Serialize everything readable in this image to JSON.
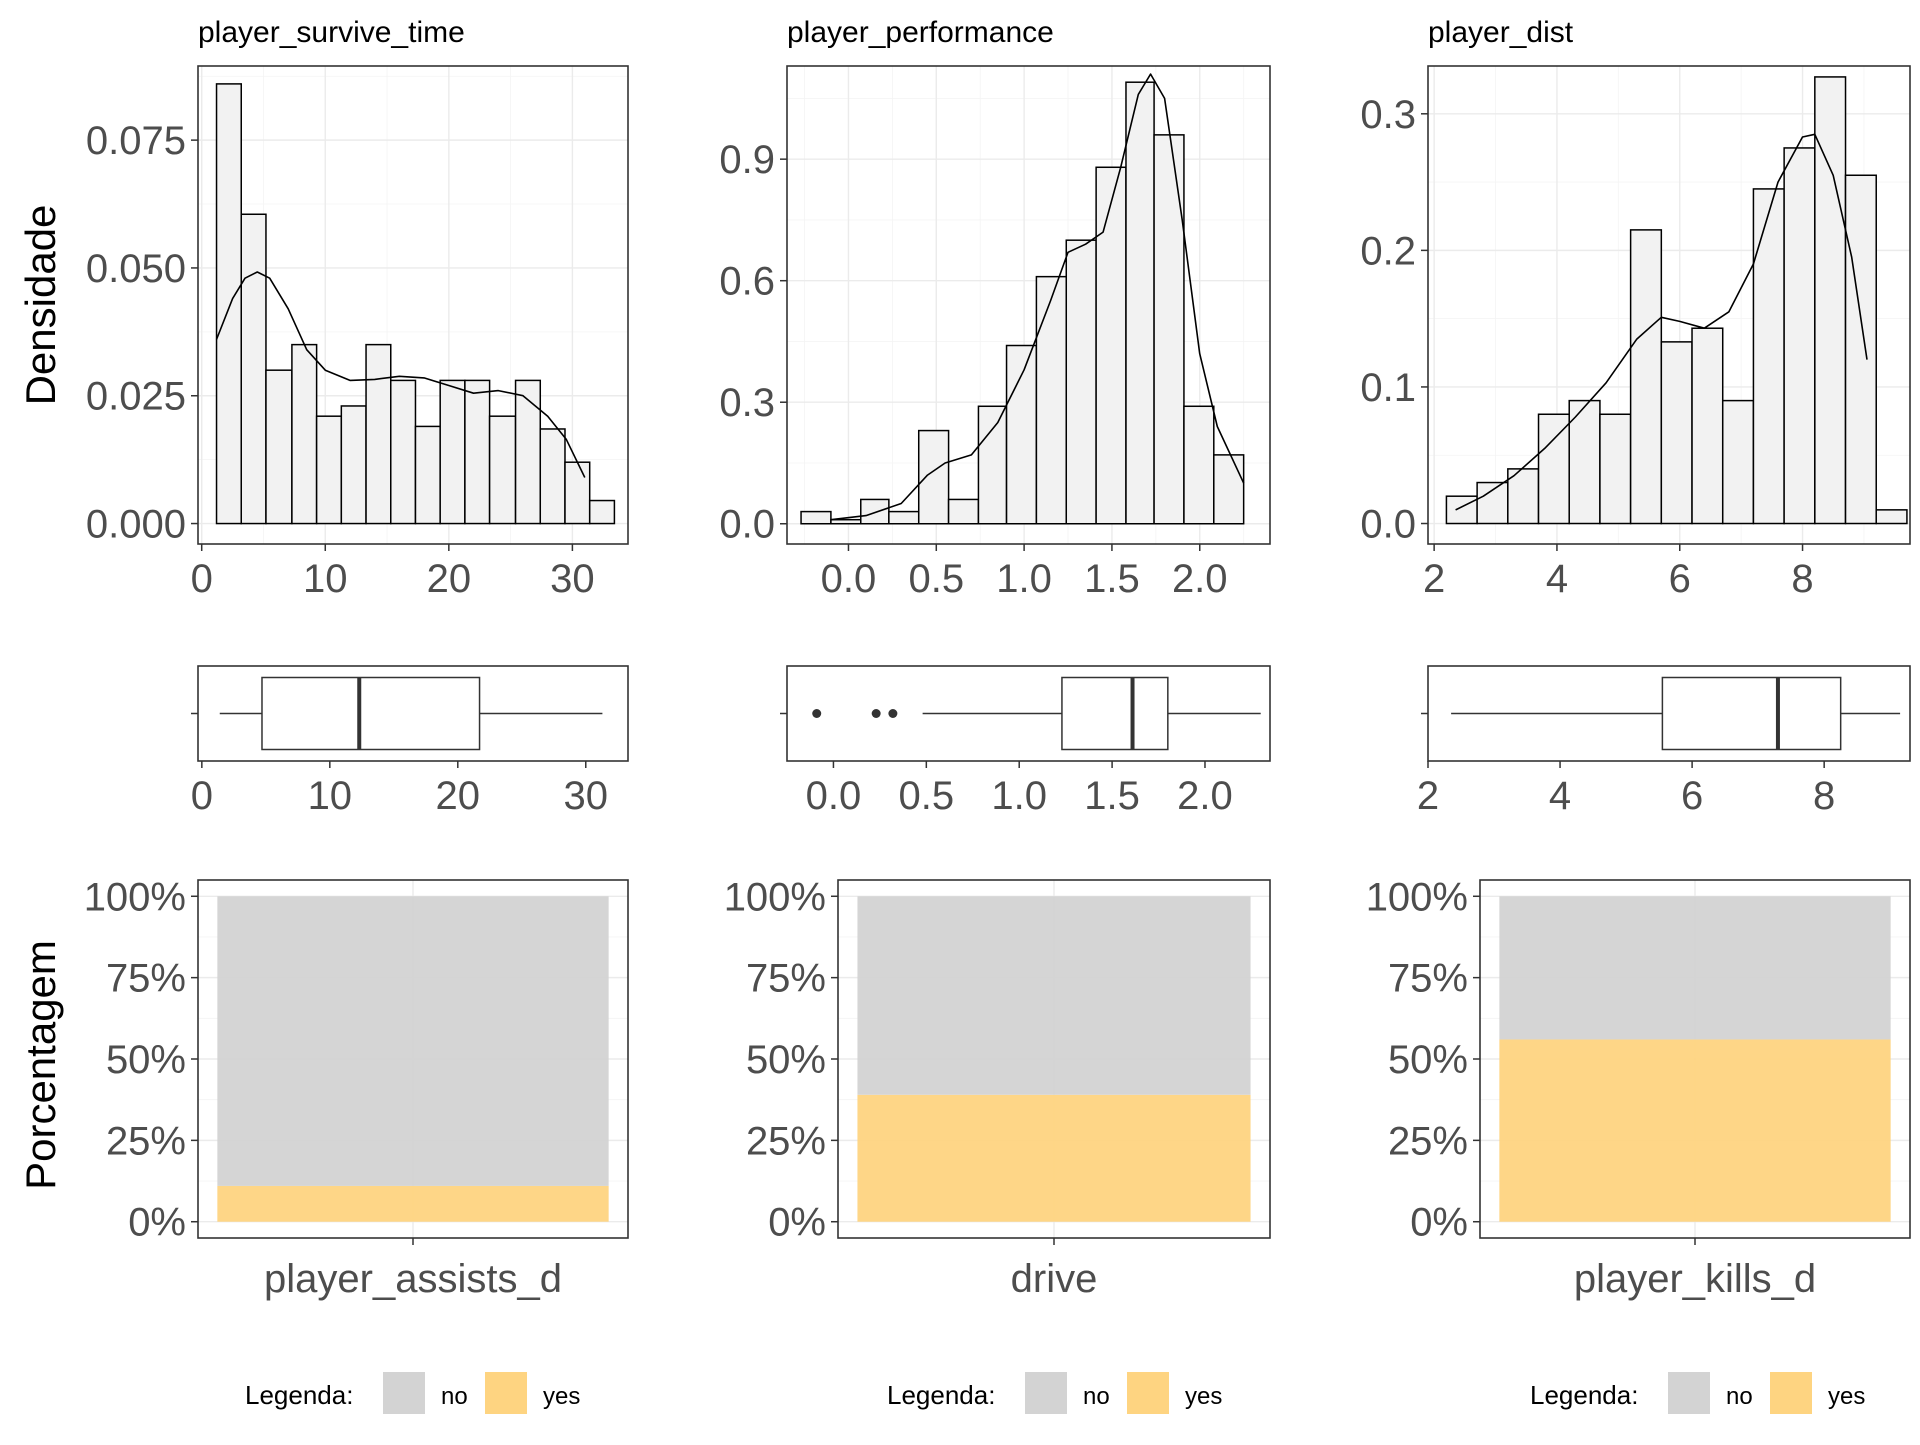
{
  "ylabels": {
    "density": "Densidade",
    "percent": "Porcentagem"
  },
  "colors": {
    "no": "#d3d3d3",
    "yes": "#fed481",
    "hist_fill": "#f2f2f2",
    "box_fill": "#ffffff",
    "stroke": "#000000"
  },
  "chart_data": [
    {
      "type": "bar",
      "title": "player_survive_time",
      "ylabel": "Densidade",
      "xlim": [
        -0.3,
        34.5
      ],
      "ylim": [
        -0.004,
        0.0895
      ],
      "xticks": [
        0,
        10,
        20,
        30
      ],
      "yticks": [
        0.0,
        0.025,
        0.05,
        0.075
      ],
      "ytick_labels": [
        "0.000",
        "0.025",
        "0.050",
        "0.075"
      ],
      "bins": [
        [
          1.2,
          3.2,
          0.086
        ],
        [
          3.2,
          5.2,
          0.0605
        ],
        [
          5.2,
          7.3,
          0.03
        ],
        [
          7.3,
          9.3,
          0.035
        ],
        [
          9.3,
          11.3,
          0.021
        ],
        [
          11.3,
          13.3,
          0.023
        ],
        [
          13.3,
          15.3,
          0.035
        ],
        [
          15.3,
          17.3,
          0.028
        ],
        [
          17.3,
          19.3,
          0.019
        ],
        [
          19.3,
          21.3,
          0.028
        ],
        [
          21.3,
          23.3,
          0.028
        ],
        [
          23.3,
          25.4,
          0.021
        ],
        [
          25.4,
          27.4,
          0.028
        ],
        [
          27.4,
          29.4,
          0.0185
        ],
        [
          29.4,
          31.4,
          0.012
        ],
        [
          31.4,
          33.4,
          0.0045
        ]
      ],
      "density": [
        [
          1.2,
          0.036
        ],
        [
          2.5,
          0.044
        ],
        [
          3.5,
          0.048
        ],
        [
          4.5,
          0.0492
        ],
        [
          5.5,
          0.048
        ],
        [
          7,
          0.042
        ],
        [
          8.5,
          0.034
        ],
        [
          10,
          0.03
        ],
        [
          12,
          0.028
        ],
        [
          14,
          0.0282
        ],
        [
          16,
          0.0288
        ],
        [
          18,
          0.0285
        ],
        [
          20,
          0.027
        ],
        [
          22,
          0.0255
        ],
        [
          24,
          0.026
        ],
        [
          26,
          0.025
        ],
        [
          28,
          0.021
        ],
        [
          29.5,
          0.0165
        ],
        [
          31,
          0.009
        ]
      ]
    },
    {
      "type": "bar",
      "title": "player_performance",
      "xlim": [
        -0.35,
        2.4
      ],
      "ylim": [
        -0.05,
        1.13
      ],
      "xticks": [
        0.0,
        0.5,
        1.0,
        1.5,
        2.0
      ],
      "xtick_labels": [
        "0.0",
        "0.5",
        "1.0",
        "1.5",
        "2.0"
      ],
      "yticks": [
        0.0,
        0.3,
        0.6,
        0.9
      ],
      "ytick_labels": [
        "0.0",
        "0.3",
        "0.6",
        "0.9"
      ],
      "bins": [
        [
          -0.27,
          -0.1,
          0.03
        ],
        [
          -0.1,
          0.07,
          0.01
        ],
        [
          0.07,
          0.23,
          0.06
        ],
        [
          0.23,
          0.4,
          0.03
        ],
        [
          0.4,
          0.57,
          0.23
        ],
        [
          0.57,
          0.74,
          0.06
        ],
        [
          0.74,
          0.9,
          0.29
        ],
        [
          0.9,
          1.07,
          0.44
        ],
        [
          1.07,
          1.24,
          0.61
        ],
        [
          1.24,
          1.41,
          0.7
        ],
        [
          1.41,
          1.58,
          0.88
        ],
        [
          1.58,
          1.74,
          1.09
        ],
        [
          1.74,
          1.91,
          0.96
        ],
        [
          1.91,
          2.08,
          0.29
        ],
        [
          2.08,
          2.25,
          0.17
        ]
      ],
      "density": [
        [
          -0.1,
          0.01
        ],
        [
          0.1,
          0.02
        ],
        [
          0.3,
          0.05
        ],
        [
          0.45,
          0.12
        ],
        [
          0.55,
          0.15
        ],
        [
          0.7,
          0.17
        ],
        [
          0.85,
          0.25
        ],
        [
          1.0,
          0.38
        ],
        [
          1.15,
          0.55
        ],
        [
          1.25,
          0.67
        ],
        [
          1.35,
          0.69
        ],
        [
          1.45,
          0.72
        ],
        [
          1.55,
          0.88
        ],
        [
          1.65,
          1.06
        ],
        [
          1.72,
          1.11
        ],
        [
          1.8,
          1.05
        ],
        [
          1.9,
          0.75
        ],
        [
          2.0,
          0.42
        ],
        [
          2.1,
          0.24
        ],
        [
          2.25,
          0.1
        ]
      ]
    },
    {
      "type": "bar",
      "title": "player_dist",
      "xlim": [
        1.9,
        9.75
      ],
      "ylim": [
        -0.015,
        0.335
      ],
      "xticks": [
        2,
        4,
        6,
        8
      ],
      "yticks": [
        0.0,
        0.1,
        0.2,
        0.3
      ],
      "ytick_labels": [
        "0.0",
        "0.1",
        "0.2",
        "0.3"
      ],
      "bins": [
        [
          2.2,
          2.7,
          0.02
        ],
        [
          2.7,
          3.2,
          0.03
        ],
        [
          3.2,
          3.7,
          0.04
        ],
        [
          3.7,
          4.2,
          0.08
        ],
        [
          4.2,
          4.7,
          0.09
        ],
        [
          4.7,
          5.2,
          0.08
        ],
        [
          5.2,
          5.7,
          0.215
        ],
        [
          5.7,
          6.2,
          0.133
        ],
        [
          6.2,
          6.7,
          0.143
        ],
        [
          6.7,
          7.2,
          0.09
        ],
        [
          7.2,
          7.7,
          0.245
        ],
        [
          7.7,
          8.2,
          0.275
        ],
        [
          8.2,
          8.7,
          0.327
        ],
        [
          8.7,
          9.2,
          0.255
        ],
        [
          9.2,
          9.7,
          0.01
        ]
      ],
      "density": [
        [
          2.35,
          0.01
        ],
        [
          2.8,
          0.02
        ],
        [
          3.3,
          0.035
        ],
        [
          3.8,
          0.055
        ],
        [
          4.3,
          0.078
        ],
        [
          4.8,
          0.103
        ],
        [
          5.3,
          0.135
        ],
        [
          5.7,
          0.151
        ],
        [
          6.0,
          0.148
        ],
        [
          6.4,
          0.143
        ],
        [
          6.8,
          0.155
        ],
        [
          7.2,
          0.19
        ],
        [
          7.6,
          0.25
        ],
        [
          8.0,
          0.283
        ],
        [
          8.2,
          0.285
        ],
        [
          8.5,
          0.255
        ],
        [
          8.8,
          0.195
        ],
        [
          9.05,
          0.12
        ]
      ]
    },
    {
      "type": "box",
      "xlim": [
        -0.3,
        33.3
      ],
      "xticks": [
        0,
        10,
        20,
        30
      ],
      "whisker_low": 1.4,
      "q1": 4.7,
      "median": 12.3,
      "q3": 21.7,
      "whisker_high": 31.3,
      "outliers": []
    },
    {
      "type": "box",
      "xlim": [
        -0.25,
        2.35
      ],
      "xticks": [
        0.0,
        0.5,
        1.0,
        1.5,
        2.0
      ],
      "xtick_labels": [
        "0.0",
        "0.5",
        "1.0",
        "1.5",
        "2.0"
      ],
      "whisker_low": 0.48,
      "q1": 1.23,
      "median": 1.61,
      "q3": 1.8,
      "whisker_high": 2.3,
      "outliers": [
        -0.09,
        0.23,
        0.32
      ]
    },
    {
      "type": "box",
      "xlim": [
        2.0,
        9.3
      ],
      "xticks": [
        2,
        4,
        6,
        8
      ],
      "whisker_low": 2.35,
      "q1": 5.55,
      "median": 7.3,
      "q3": 8.25,
      "whisker_high": 9.15,
      "outliers": []
    },
    {
      "type": "bar",
      "stacked": true,
      "ylabel": "Porcentagem",
      "categories": [
        "player_assists_d"
      ],
      "ylim": [
        0,
        100
      ],
      "yticks": [
        0,
        25,
        50,
        75,
        100
      ],
      "ytick_labels": [
        "0%",
        "25%",
        "50%",
        "75%",
        "100%"
      ],
      "series": [
        {
          "name": "yes",
          "values": [
            11
          ]
        },
        {
          "name": "no",
          "values": [
            89
          ]
        }
      ],
      "legend": {
        "title": "Legenda:",
        "entries": [
          "no",
          "yes"
        ],
        "position": "bottom"
      }
    },
    {
      "type": "bar",
      "stacked": true,
      "categories": [
        "drive"
      ],
      "ylim": [
        0,
        100
      ],
      "yticks": [
        0,
        25,
        50,
        75,
        100
      ],
      "ytick_labels": [
        "0%",
        "25%",
        "50%",
        "75%",
        "100%"
      ],
      "series": [
        {
          "name": "yes",
          "values": [
            39
          ]
        },
        {
          "name": "no",
          "values": [
            61
          ]
        }
      ],
      "legend": {
        "title": "Legenda:",
        "entries": [
          "no",
          "yes"
        ],
        "position": "bottom"
      }
    },
    {
      "type": "bar",
      "stacked": true,
      "categories": [
        "player_kills_d"
      ],
      "ylim": [
        0,
        100
      ],
      "yticks": [
        0,
        25,
        50,
        75,
        100
      ],
      "ytick_labels": [
        "0%",
        "25%",
        "50%",
        "75%",
        "100%"
      ],
      "series": [
        {
          "name": "yes",
          "values": [
            56
          ]
        },
        {
          "name": "no",
          "values": [
            44
          ]
        }
      ],
      "legend": {
        "title": "Legenda:",
        "entries": [
          "no",
          "yes"
        ],
        "position": "bottom"
      }
    }
  ]
}
